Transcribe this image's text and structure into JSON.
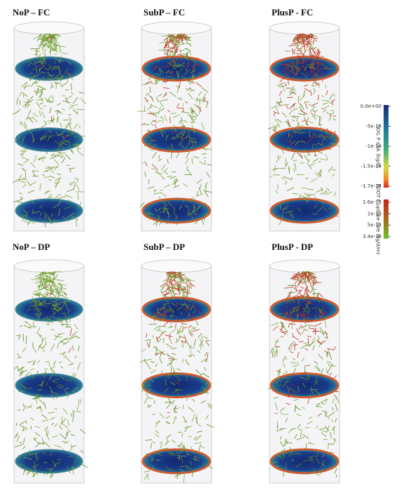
{
  "panels": [
    {
      "title": "NoP – FC"
    },
    {
      "title": "SubP – FC"
    },
    {
      "title": "PlusP - FC"
    },
    {
      "title": "NoP – DP"
    },
    {
      "title": "SubP – DP"
    },
    {
      "title": "PlusP - DP"
    }
  ],
  "colorbars": [
    {
      "title": "SOIL P sink (kg/d)",
      "ticks": [
        "0.0e+00",
        "-5e-15",
        "-1e-14",
        "-1.5e-14",
        "-1.7e-14"
      ]
    },
    {
      "title": "ROOT P uptake rate (kg/d/m)",
      "ticks": [
        "1.6e-13",
        "1e-13",
        "5e-14",
        "3.4e-16"
      ]
    }
  ]
}
